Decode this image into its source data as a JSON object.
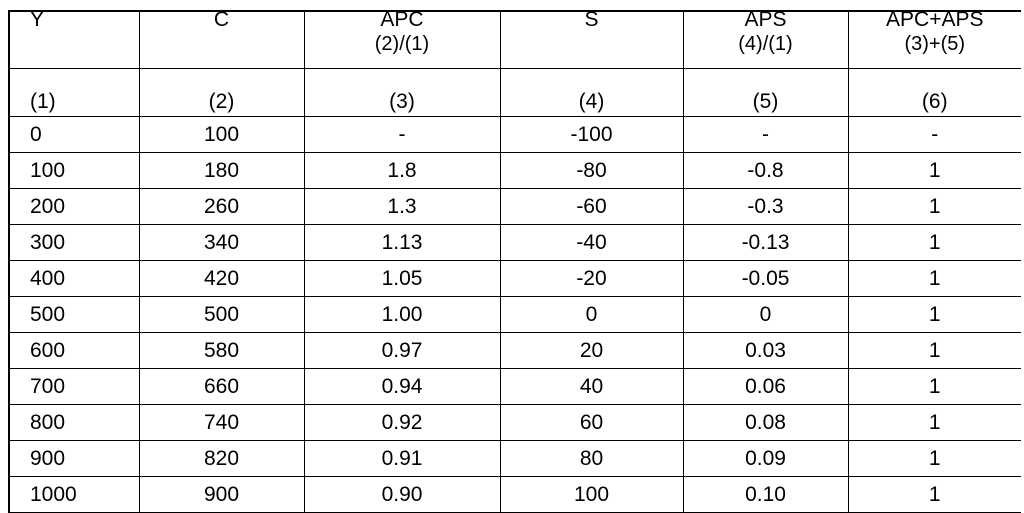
{
  "table": {
    "headers": [
      {
        "title": "Y",
        "formula": ""
      },
      {
        "title": "C",
        "formula": ""
      },
      {
        "title": "APC",
        "formula": "(2)/(1)"
      },
      {
        "title": "S",
        "formula": ""
      },
      {
        "title": "APS",
        "formula": "(4)/(1)"
      },
      {
        "title": "APC+APS",
        "formula": "(3)+(5)"
      }
    ],
    "column_numbers": [
      "(1)",
      "(2)",
      "(3)",
      "(4)",
      "(5)",
      "(6)"
    ],
    "rows": [
      [
        "0",
        "100",
        "-",
        "-100",
        "-",
        "-"
      ],
      [
        "100",
        "180",
        "1.8",
        "-80",
        "-0.8",
        "1"
      ],
      [
        "200",
        "260",
        "1.3",
        "-60",
        "-0.3",
        "1"
      ],
      [
        "300",
        "340",
        "1.13",
        "-40",
        "-0.13",
        "1"
      ],
      [
        "400",
        "420",
        "1.05",
        "-20",
        "-0.05",
        "1"
      ],
      [
        "500",
        "500",
        "1.00",
        "0",
        "0",
        "1"
      ],
      [
        "600",
        "580",
        "0.97",
        "20",
        "0.03",
        "1"
      ],
      [
        "700",
        "660",
        "0.94",
        "40",
        "0.06",
        "1"
      ],
      [
        "800",
        "740",
        "0.92",
        "60",
        "0.08",
        "1"
      ],
      [
        "900",
        "820",
        "0.91",
        "80",
        "0.09",
        "1"
      ],
      [
        "1000",
        "900",
        "0.90",
        "100",
        "0.10",
        "1"
      ]
    ]
  }
}
